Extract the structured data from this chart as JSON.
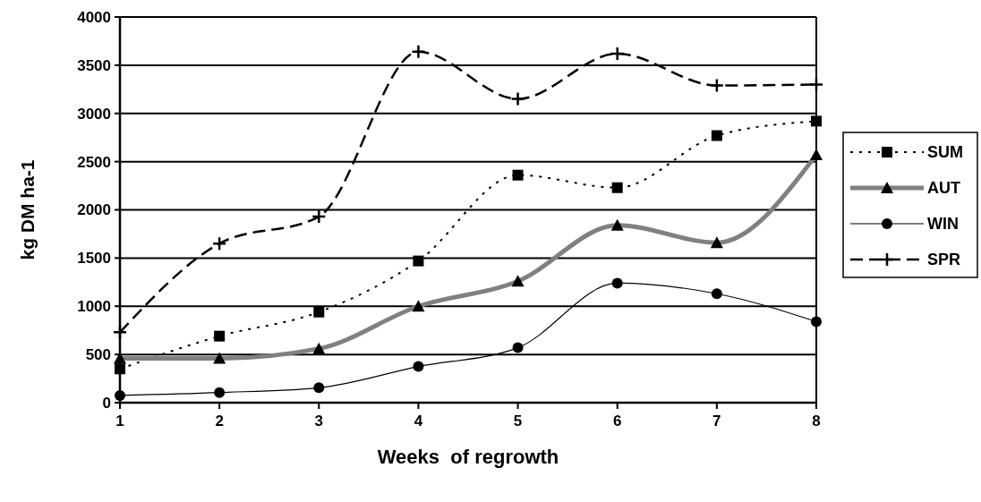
{
  "chart_data": {
    "type": "line",
    "xlabel": "Weeks  of regrowth",
    "ylabel": "kg DM ha-1",
    "x": [
      1,
      2,
      3,
      4,
      5,
      6,
      7,
      8
    ],
    "xlim": [
      1,
      8
    ],
    "xticks": [
      1,
      2,
      3,
      4,
      5,
      6,
      7,
      8
    ],
    "ylim": [
      0,
      4000
    ],
    "yticks": [
      0,
      500,
      1000,
      1500,
      2000,
      2500,
      3000,
      3500,
      4000
    ],
    "grid": "y",
    "legend": "right",
    "series": [
      {
        "name": "SUM",
        "color": "#000000",
        "marker": "square",
        "line_style": "dotted",
        "values": [
          350,
          690,
          940,
          1470,
          2360,
          2230,
          2770,
          2920
        ]
      },
      {
        "name": "AUT",
        "color": "#808080",
        "marker": "triangle",
        "line_style": "solid",
        "values": [
          460,
          460,
          560,
          1000,
          1260,
          1840,
          1660,
          2570
        ]
      },
      {
        "name": "WIN",
        "color": "#000000",
        "marker": "circle",
        "line_style": "solid",
        "values": [
          75,
          105,
          155,
          375,
          570,
          1240,
          1130,
          840
        ]
      },
      {
        "name": "SPR",
        "color": "#000000",
        "marker": "cross",
        "line_style": "dashed",
        "values": [
          730,
          1650,
          1930,
          3640,
          3150,
          3620,
          3290,
          3300
        ]
      }
    ]
  }
}
